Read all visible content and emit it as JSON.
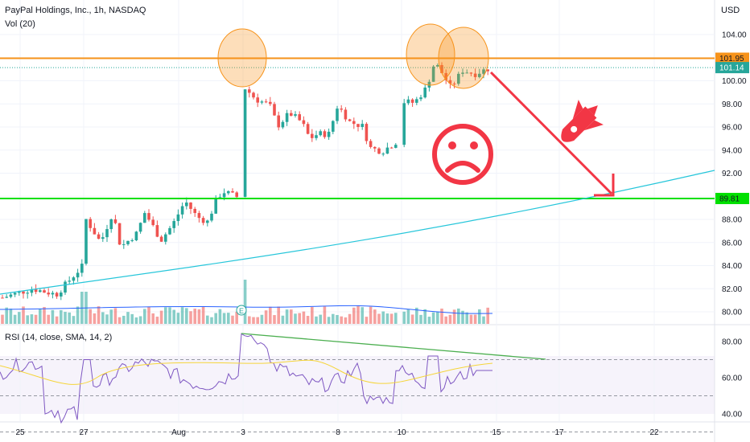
{
  "header": {
    "title": "PayPal Holdings, Inc., 1h, NASDAQ",
    "vol_label": "Vol (20)",
    "currency": "USD",
    "rsi_label": "RSI (14, close, SMA, 14, 2)"
  },
  "chart_data": {
    "type": "candlestick",
    "price_axis": {
      "ticks": [
        "104.00",
        "102.00",
        "100.00",
        "98.00",
        "96.00",
        "94.00",
        "92.00",
        "90.00",
        "88.00",
        "86.00",
        "84.00",
        "82.00",
        "80.00"
      ],
      "range": [
        79.5,
        105
      ]
    },
    "rsi_axis": {
      "ticks": [
        "80.00",
        "60.00",
        "40.00"
      ],
      "levels": [
        70,
        50,
        30
      ]
    },
    "x_axis": {
      "ticks": [
        "25",
        "27",
        "Aug",
        "3",
        "8",
        "10",
        "15",
        "17",
        "22"
      ]
    },
    "badges": {
      "resistance": "101.95",
      "last": "101.14",
      "support": "89.81"
    },
    "resistance_level": 101.95,
    "support_level": 89.81,
    "last_price": 101.14,
    "earnings_marker": "E",
    "colors": {
      "up": "#26a69a",
      "down": "#ef5350",
      "resistance": "#f7931a",
      "support": "#00e000",
      "trendline": "#26c6da",
      "rsi": "#7e57c2",
      "rsi_ma": "#f5d53a",
      "rsi_trend": "#4caf50",
      "arrow": "#f23645",
      "volume_ma": "#2962ff"
    },
    "annotations": [
      "double-top-circles",
      "sad-face",
      "rocket-down",
      "arrow-down"
    ]
  }
}
